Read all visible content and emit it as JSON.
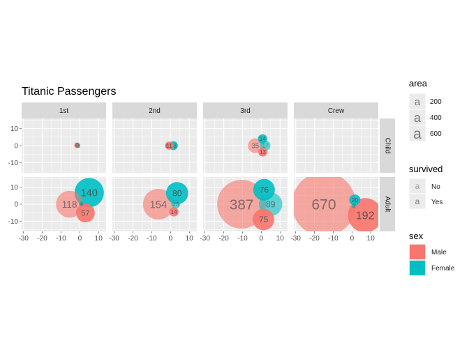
{
  "chart_data": {
    "type": "scatter",
    "title": "Titanic Passengers",
    "xlabel": "",
    "ylabel": "",
    "col_facets": [
      "1st",
      "2nd",
      "3rd",
      "Crew"
    ],
    "row_facets": [
      "Child",
      "Adult"
    ],
    "x_ticks": [
      -30,
      -20,
      -10,
      0,
      10
    ],
    "y_ticks": [
      -10,
      0,
      10
    ],
    "xlim": [
      -31,
      14
    ],
    "ylim": [
      -16,
      16
    ],
    "grid": true,
    "legend_position": "right",
    "colors": {
      "Male": "#F8766D",
      "Female": "#00BFC4"
    },
    "alpha": {
      "No": 0.6,
      "Yes": 0.9
    },
    "points": [
      {
        "class": "1st",
        "age": "Child",
        "sex": "Male",
        "survived": "No",
        "value": 0,
        "x": -1.5,
        "y": 0.2,
        "label": "0"
      },
      {
        "class": "1st",
        "age": "Child",
        "sex": "Male",
        "survived": "Yes",
        "value": 5,
        "x": -1.5,
        "y": 0.2,
        "label": "5"
      },
      {
        "class": "1st",
        "age": "Child",
        "sex": "Female",
        "survived": "Yes",
        "value": 1,
        "x": -0.5,
        "y": 0.2,
        "label": "1"
      },
      {
        "class": "1st",
        "age": "Adult",
        "sex": "Male",
        "survived": "No",
        "value": 118,
        "x": -5.5,
        "y": 0.0,
        "label": "118"
      },
      {
        "class": "1st",
        "age": "Adult",
        "sex": "Female",
        "survived": "Yes",
        "value": 140,
        "x": 5.0,
        "y": 6.8,
        "label": "140"
      },
      {
        "class": "1st",
        "age": "Adult",
        "sex": "Male",
        "survived": "Yes",
        "value": 57,
        "x": 3.0,
        "y": -5.2,
        "label": "57"
      },
      {
        "class": "1st",
        "age": "Adult",
        "sex": "Female",
        "survived": "No",
        "value": 4,
        "x": 0.8,
        "y": 0.2,
        "label": "4"
      },
      {
        "class": "2nd",
        "age": "Child",
        "sex": "Male",
        "survived": "No",
        "value": 0,
        "x": -1.8,
        "y": 0.0,
        "label": "0"
      },
      {
        "class": "2nd",
        "age": "Child",
        "sex": "Male",
        "survived": "Yes",
        "value": 11,
        "x": -0.7,
        "y": 0.0,
        "label": "11"
      },
      {
        "class": "2nd",
        "age": "Child",
        "sex": "Female",
        "survived": "Yes",
        "value": 13,
        "x": 1.5,
        "y": 0.0,
        "label": "13"
      },
      {
        "class": "2nd",
        "age": "Adult",
        "sex": "Male",
        "survived": "No",
        "value": 154,
        "x": -6.5,
        "y": 0.0,
        "label": "154"
      },
      {
        "class": "2nd",
        "age": "Adult",
        "sex": "Female",
        "survived": "Yes",
        "value": 80,
        "x": 3.5,
        "y": 6.5,
        "label": "80"
      },
      {
        "class": "2nd",
        "age": "Adult",
        "sex": "Male",
        "survived": "Yes",
        "value": 14,
        "x": 1.8,
        "y": -4.5,
        "label": "14"
      },
      {
        "class": "2nd",
        "age": "Adult",
        "sex": "Female",
        "survived": "No",
        "value": 13,
        "x": 2.8,
        "y": 0.0,
        "label": "13"
      },
      {
        "class": "3rd",
        "age": "Child",
        "sex": "Male",
        "survived": "No",
        "value": 35,
        "x": -3.2,
        "y": 0.0,
        "label": "35"
      },
      {
        "class": "3rd",
        "age": "Child",
        "sex": "Female",
        "survived": "Yes",
        "value": 14,
        "x": 0.7,
        "y": 4.0,
        "label": "14"
      },
      {
        "class": "3rd",
        "age": "Child",
        "sex": "Female",
        "survived": "No",
        "value": 17,
        "x": 2.2,
        "y": 0.0,
        "label": "17"
      },
      {
        "class": "3rd",
        "age": "Child",
        "sex": "Male",
        "survived": "Yes",
        "value": 13,
        "x": 0.8,
        "y": -3.8,
        "label": "13"
      },
      {
        "class": "3rd",
        "age": "Adult",
        "sex": "Male",
        "survived": "No",
        "value": 387,
        "x": -10.5,
        "y": 0.0,
        "label": "387"
      },
      {
        "class": "3rd",
        "age": "Adult",
        "sex": "Female",
        "survived": "Yes",
        "value": 76,
        "x": 1.5,
        "y": 8.5,
        "label": "76"
      },
      {
        "class": "3rd",
        "age": "Adult",
        "sex": "Female",
        "survived": "No",
        "value": 89,
        "x": 5.0,
        "y": 0.0,
        "label": "89"
      },
      {
        "class": "3rd",
        "age": "Adult",
        "sex": "Male",
        "survived": "Yes",
        "value": 75,
        "x": 1.2,
        "y": -9.0,
        "label": "75"
      },
      {
        "class": "Crew",
        "age": "Adult",
        "sex": "Male",
        "survived": "No",
        "value": 670,
        "x": -15.0,
        "y": 0.0,
        "label": "670"
      },
      {
        "class": "Crew",
        "age": "Adult",
        "sex": "Female",
        "survived": "Yes",
        "value": 20,
        "x": 1.5,
        "y": 2.5,
        "label": "20"
      },
      {
        "class": "Crew",
        "age": "Adult",
        "sex": "Female",
        "survived": "No",
        "value": 3,
        "x": 1.0,
        "y": -1.0,
        "label": "3"
      },
      {
        "class": "Crew",
        "age": "Adult",
        "sex": "Male",
        "survived": "Yes",
        "value": 192,
        "x": 7.0,
        "y": -6.5,
        "label": "192"
      }
    ],
    "legends": {
      "area": {
        "title": "area",
        "keys": [
          200,
          400,
          600
        ]
      },
      "survived": {
        "title": "survived",
        "keys": [
          "No",
          "Yes"
        ]
      },
      "sex": {
        "title": "sex",
        "keys": [
          "Male",
          "Female"
        ]
      }
    }
  }
}
